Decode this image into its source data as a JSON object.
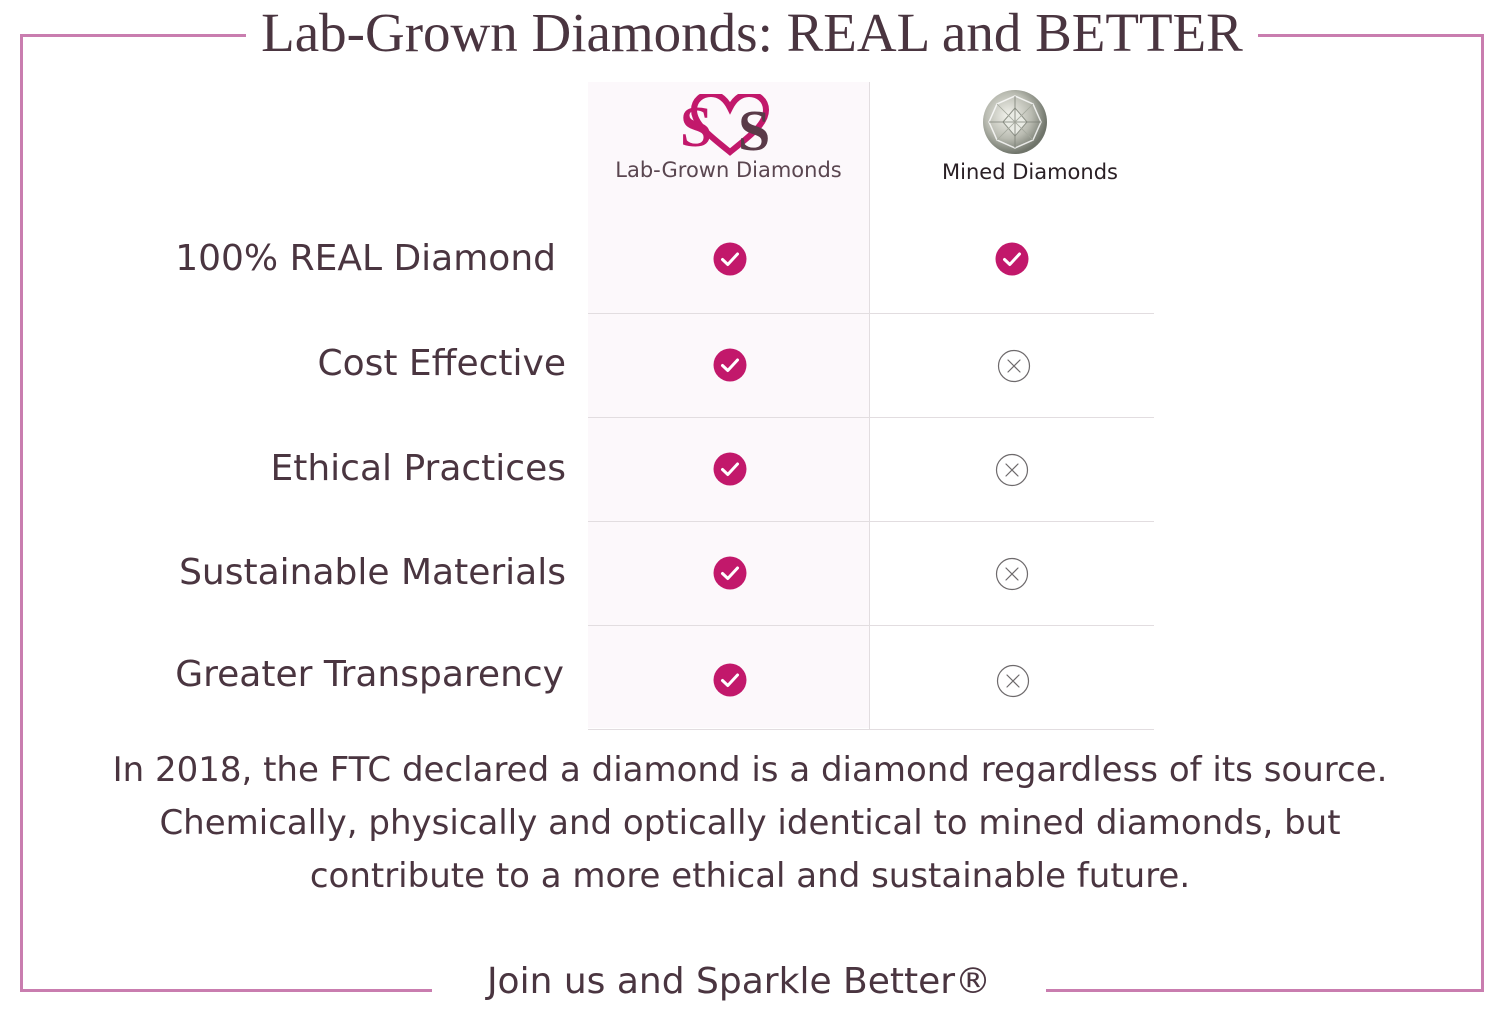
{
  "title": "Lab-Grown Diamonds: REAL and BETTER",
  "columns": {
    "lab": {
      "label": "Lab-Grown Diamonds",
      "logo_icon": "heart-ss-logo-icon"
    },
    "mined": {
      "label": "Mined Diamonds",
      "image_icon": "round-diamond-icon"
    }
  },
  "rows": [
    {
      "label": "100% REAL Diamond",
      "lab": "check",
      "mined": "check"
    },
    {
      "label": "Cost Effective",
      "lab": "check",
      "mined": "cross"
    },
    {
      "label": "Ethical Practices",
      "lab": "check",
      "mined": "cross"
    },
    {
      "label": "Sustainable Materials",
      "lab": "check",
      "mined": "cross"
    },
    {
      "label": "Greater Transparency",
      "lab": "check",
      "mined": "cross"
    }
  ],
  "body": [
    "In 2018, the FTC declared a diamond is a diamond regardless of its source.",
    "Chemically, physically and optically identical to mined diamonds, but",
    "contribute to a more ethical and sustainable future."
  ],
  "footer": "Join us and Sparkle Better®",
  "colors": {
    "accent": "#c2186b",
    "frame": "#c97daf",
    "text": "#4a3540"
  }
}
